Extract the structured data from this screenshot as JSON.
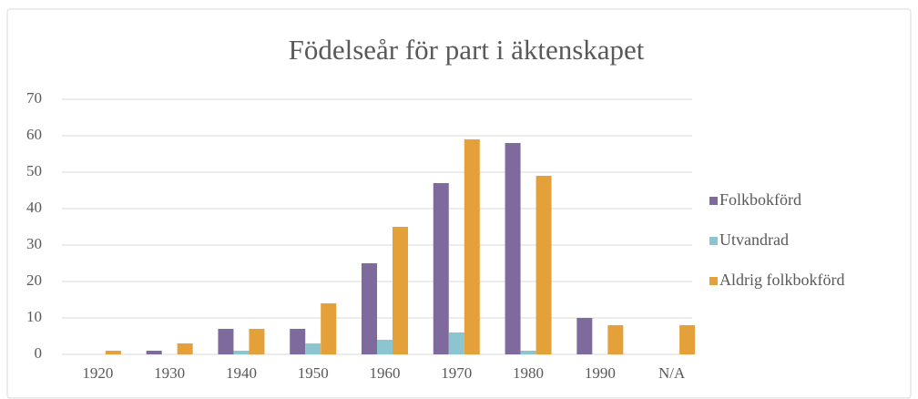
{
  "chart_data": {
    "type": "bar",
    "title": "Födelseår för part i äktenskapet",
    "categories": [
      "1920",
      "1930",
      "1940",
      "1950",
      "1960",
      "1970",
      "1980",
      "1990",
      "N/A"
    ],
    "series": [
      {
        "name": "Folkbokförd",
        "color": "#7e6a9c",
        "values": [
          0,
          1,
          7,
          7,
          25,
          47,
          58,
          10,
          0
        ]
      },
      {
        "name": "Utvandrad",
        "color": "#8cc4cf",
        "values": [
          0,
          0,
          1,
          3,
          4,
          6,
          1,
          0,
          0
        ]
      },
      {
        "name": "Aldrig folkbokförd",
        "color": "#e5a139",
        "values": [
          1,
          3,
          7,
          14,
          35,
          59,
          49,
          8,
          8
        ]
      }
    ],
    "ylim": [
      0,
      70
    ],
    "yticks": [
      0,
      10,
      20,
      30,
      40,
      50,
      60,
      70
    ],
    "grid": true,
    "legend": "right"
  }
}
